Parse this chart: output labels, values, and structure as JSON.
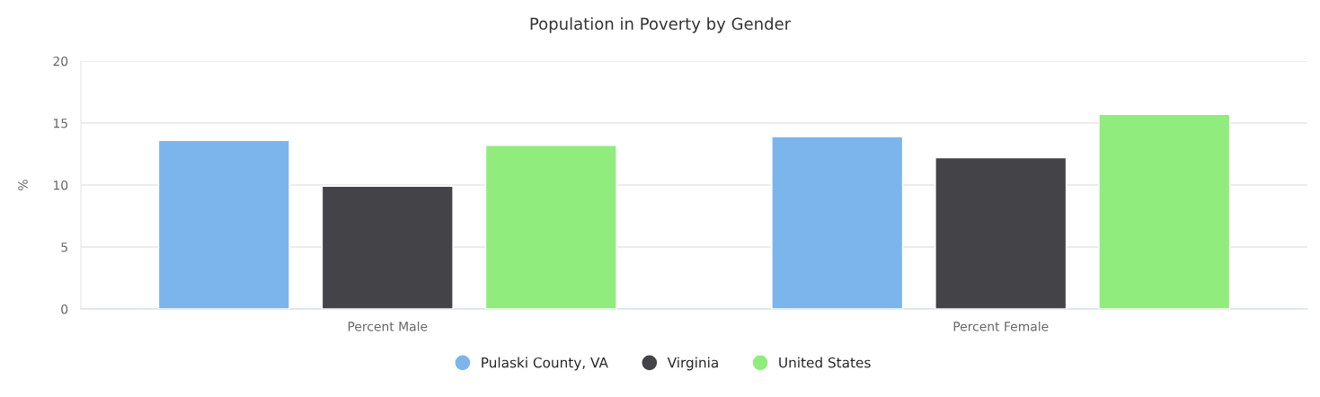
{
  "chart_data": {
    "type": "bar",
    "title": "Population in Poverty by Gender",
    "ylabel": "%",
    "categories": [
      "Percent Male",
      "Percent Female"
    ],
    "series": [
      {
        "name": "Pulaski County, VA",
        "color": "#7cb5ec",
        "values": [
          13.6,
          13.9
        ]
      },
      {
        "name": "Virginia",
        "color": "#434348",
        "values": [
          9.9,
          12.2
        ]
      },
      {
        "name": "United States",
        "color": "#90ed7d",
        "values": [
          13.2,
          15.7
        ]
      }
    ],
    "ylim": [
      0,
      20
    ],
    "yticks": [
      0,
      5,
      10,
      15,
      20
    ],
    "grid": "y",
    "legend": "bottom"
  }
}
